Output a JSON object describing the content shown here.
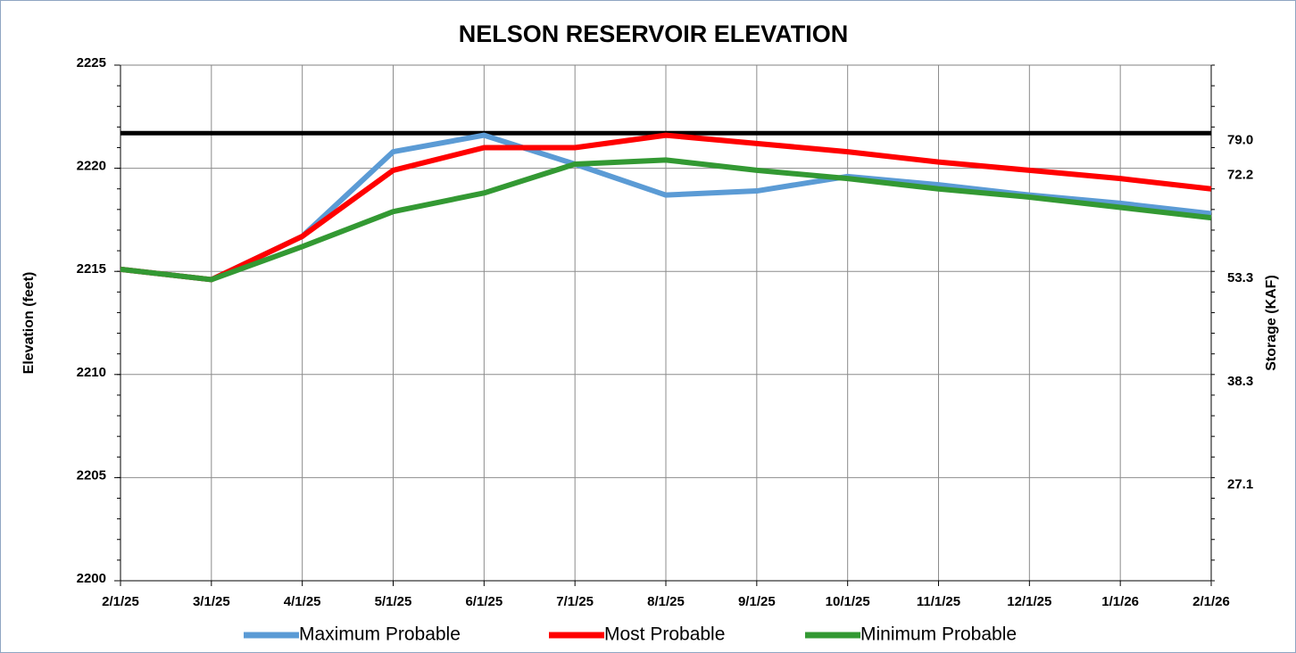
{
  "chart_data": {
    "type": "line",
    "title": "NELSON RESERVOIR ELEVATION",
    "y_label": "Elevation (feet)",
    "y2_label": "Storage (KAF)",
    "categories": [
      "2/1/25",
      "3/1/25",
      "4/1/25",
      "5/1/25",
      "6/1/25",
      "7/1/25",
      "8/1/25",
      "9/1/25",
      "10/1/25",
      "11/1/25",
      "12/1/25",
      "1/1/26",
      "2/1/26"
    ],
    "series": [
      {
        "name": "Maximum Probable",
        "color": "#5b9bd5",
        "values": [
          2215.1,
          2214.6,
          2216.7,
          2220.8,
          2221.6,
          2220.2,
          2218.7,
          2218.9,
          2219.6,
          2219.2,
          2218.7,
          2218.3,
          2217.8
        ]
      },
      {
        "name": "Most Probable",
        "color": "#ff0000",
        "values": [
          2215.1,
          2214.6,
          2216.7,
          2219.9,
          2221.0,
          2221.0,
          2221.6,
          2221.2,
          2220.8,
          2220.3,
          2219.9,
          2219.5,
          2219.0
        ]
      },
      {
        "name": "Minimum Probable",
        "color": "#339933",
        "values": [
          2215.1,
          2214.6,
          2216.2,
          2217.9,
          2218.8,
          2220.2,
          2220.4,
          2219.9,
          2219.5,
          2219.0,
          2218.6,
          2218.1,
          2217.6
        ]
      }
    ],
    "reference_line": {
      "value": 2221.7,
      "color": "#000000"
    },
    "ylim": [
      2200,
      2225
    ],
    "yticks": [
      2200,
      2205,
      2210,
      2215,
      2220,
      2225
    ],
    "yminor": 1,
    "y2ticks": [
      {
        "value": 79,
        "label": "79.0",
        "elevation": 2221.7
      },
      {
        "value": 72.2,
        "elevation": 2220
      },
      {
        "value": 53.3,
        "elevation": 2215
      },
      {
        "value": 38.3,
        "elevation": 2210
      },
      {
        "value": 27.1,
        "elevation": 2205
      }
    ],
    "grid": true,
    "legend": "bottom"
  }
}
